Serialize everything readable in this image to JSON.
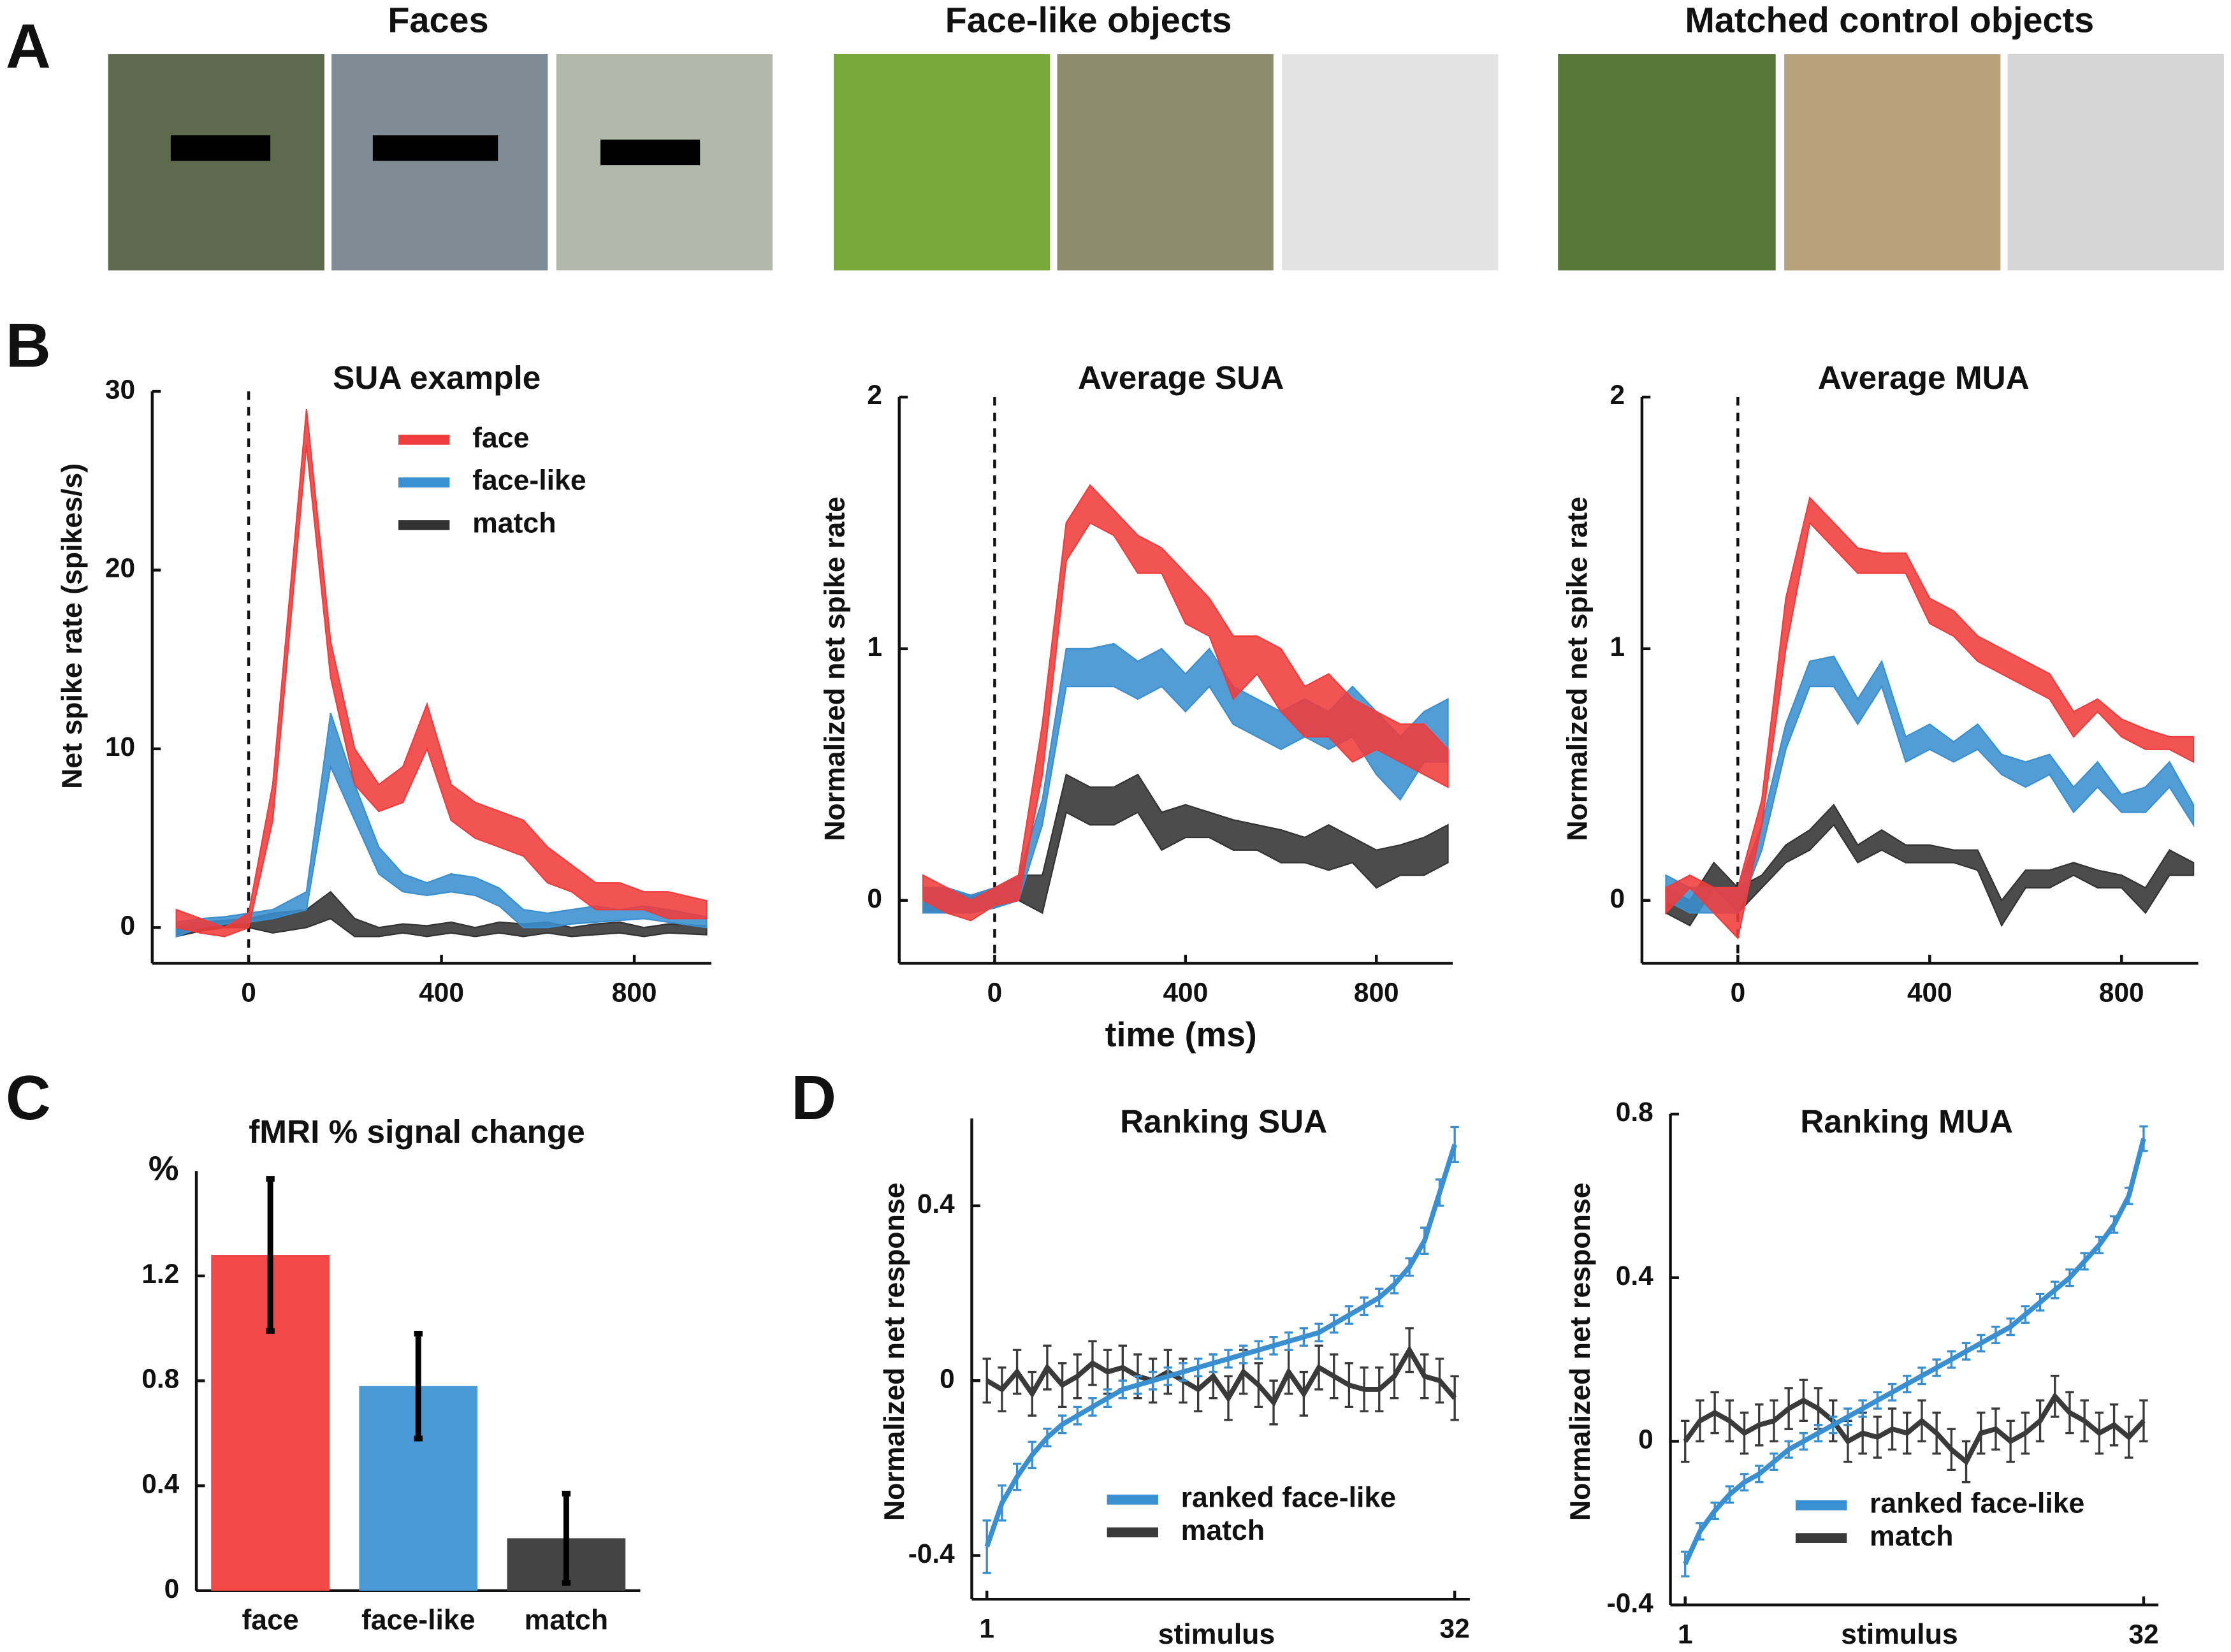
{
  "panel_labels": [
    "A",
    "B",
    "C",
    "D"
  ],
  "image_titles": [
    "Faces",
    "Face-like objects",
    "Matched control objects"
  ],
  "chart_data": [
    {
      "type": "band",
      "title": "SUA example",
      "y_label": "Net spike rate (spikes/s)",
      "x": [
        -150,
        -100,
        -50,
        0,
        50,
        120,
        170,
        220,
        270,
        320,
        370,
        420,
        470,
        520,
        570,
        620,
        670,
        720,
        770,
        820,
        870,
        950
      ],
      "xlim": [
        -200,
        960
      ],
      "xticks": [
        0,
        400,
        800
      ],
      "ylim": [
        -2,
        30
      ],
      "yticks": [
        0,
        10,
        20,
        30
      ],
      "vline": 0,
      "legend": "upper right",
      "series": [
        {
          "name": "face",
          "color": "#f03c3c",
          "lower": [
            0,
            -0.3,
            -0.5,
            0,
            6,
            27,
            14,
            8,
            6.5,
            7,
            10,
            6,
            5,
            4.5,
            4,
            2.5,
            2,
            1,
            1,
            1,
            0.5,
            0.5
          ],
          "upper": [
            1,
            0.5,
            0,
            0.8,
            8,
            29,
            16,
            10,
            8,
            9,
            12.5,
            8,
            7,
            6.5,
            6,
            4.5,
            3.5,
            2.5,
            2.5,
            2,
            2,
            1.5
          ]
        },
        {
          "name": "face-like",
          "color": "#3a8fd0",
          "lower": [
            -0.5,
            0,
            0.2,
            0.3,
            0.5,
            1,
            9,
            6,
            3,
            2,
            1.8,
            2,
            1.8,
            1.2,
            0,
            0,
            0.2,
            0.3,
            0.4,
            0.5,
            0.3,
            0
          ],
          "upper": [
            0.3,
            0.5,
            0.6,
            0.8,
            1,
            2,
            12,
            8,
            4.5,
            3,
            2.5,
            3,
            2.8,
            2.2,
            1,
            0.8,
            1,
            1.2,
            1,
            1.2,
            1,
            0.6
          ]
        },
        {
          "name": "match",
          "color": "#333333",
          "lower": [
            -0.5,
            -0.2,
            0,
            0,
            -0.3,
            0,
            0.5,
            -0.5,
            -0.5,
            -0.3,
            -0.5,
            -0.3,
            -0.5,
            -0.3,
            -0.5,
            -0.3,
            -0.5,
            -0.4,
            -0.3,
            -0.5,
            -0.3,
            -0.4
          ],
          "upper": [
            0,
            0.3,
            0.4,
            0.5,
            0.8,
            1,
            2,
            0.5,
            0,
            0.2,
            0.1,
            0.3,
            0,
            0.3,
            0.2,
            0.3,
            0,
            0.2,
            0.3,
            0,
            0.2,
            0.1
          ]
        }
      ]
    },
    {
      "type": "band",
      "title": "Average SUA",
      "y_label": "Normalized net spike rate",
      "x_label": "time (ms)",
      "x": [
        -150,
        -100,
        -50,
        0,
        50,
        100,
        150,
        200,
        250,
        300,
        350,
        400,
        450,
        500,
        550,
        600,
        650,
        700,
        750,
        800,
        850,
        900,
        950
      ],
      "xlim": [
        -200,
        960
      ],
      "xticks": [
        0,
        400,
        800
      ],
      "ylim": [
        -0.25,
        2
      ],
      "yticks": [
        0,
        1,
        2
      ],
      "vline": 0,
      "series": [
        {
          "color": "#f03c3c",
          "lower": [
            0,
            -0.05,
            -0.08,
            -0.02,
            0,
            0.5,
            1.35,
            1.5,
            1.45,
            1.3,
            1.3,
            1.1,
            1.05,
            0.8,
            0.9,
            0.75,
            0.65,
            0.65,
            0.55,
            0.6,
            0.55,
            0.5,
            0.45
          ],
          "upper": [
            0.1,
            0.05,
            0,
            0.05,
            0.1,
            0.7,
            1.5,
            1.65,
            1.55,
            1.45,
            1.4,
            1.3,
            1.2,
            1.05,
            1.05,
            1,
            0.85,
            0.9,
            0.8,
            0.75,
            0.7,
            0.7,
            0.6
          ]
        },
        {
          "color": "#3a8fd0",
          "lower": [
            -0.05,
            -0.05,
            -0.05,
            -0.03,
            0,
            0.3,
            0.85,
            0.85,
            0.85,
            0.8,
            0.85,
            0.75,
            0.85,
            0.7,
            0.65,
            0.6,
            0.65,
            0.6,
            0.65,
            0.5,
            0.4,
            0.55,
            0.55
          ],
          "upper": [
            0.05,
            0.05,
            0.02,
            0.05,
            0.1,
            0.4,
            1,
            1,
            1.02,
            0.95,
            1,
            0.9,
            1,
            0.85,
            0.8,
            0.75,
            0.8,
            0.75,
            0.85,
            0.75,
            0.65,
            0.75,
            0.8
          ]
        },
        {
          "color": "#333333",
          "lower": [
            -0.05,
            -0.05,
            -0.05,
            -0.03,
            0,
            -0.05,
            0.35,
            0.3,
            0.3,
            0.35,
            0.2,
            0.25,
            0.25,
            0.2,
            0.2,
            0.15,
            0.15,
            0.12,
            0.15,
            0.05,
            0.1,
            0.1,
            0.15
          ],
          "upper": [
            0.05,
            0.05,
            0.02,
            0.05,
            0.1,
            0.1,
            0.5,
            0.45,
            0.45,
            0.5,
            0.35,
            0.38,
            0.35,
            0.32,
            0.3,
            0.28,
            0.25,
            0.3,
            0.25,
            0.2,
            0.22,
            0.25,
            0.3
          ]
        }
      ]
    },
    {
      "type": "band",
      "title": "Average MUA",
      "y_label": "Normalized net spike rate",
      "x": [
        -150,
        -100,
        -50,
        0,
        50,
        100,
        150,
        200,
        250,
        300,
        350,
        400,
        450,
        500,
        550,
        600,
        650,
        700,
        750,
        800,
        850,
        900,
        950
      ],
      "xlim": [
        -200,
        960
      ],
      "xticks": [
        0,
        400,
        800
      ],
      "ylim": [
        -0.25,
        2
      ],
      "yticks": [
        0,
        1,
        2
      ],
      "vline": 0,
      "series": [
        {
          "color": "#f03c3c",
          "lower": [
            -0.05,
            0.05,
            -0.05,
            -0.15,
            0.3,
            1,
            1.5,
            1.4,
            1.3,
            1.3,
            1.3,
            1.1,
            1.05,
            0.95,
            0.9,
            0.85,
            0.8,
            0.65,
            0.75,
            0.65,
            0.6,
            0.6,
            0.55
          ],
          "upper": [
            0.05,
            0.1,
            0.05,
            0.05,
            0.4,
            1.2,
            1.6,
            1.5,
            1.4,
            1.38,
            1.38,
            1.2,
            1.15,
            1.05,
            1,
            0.95,
            0.9,
            0.75,
            0.8,
            0.72,
            0.68,
            0.65,
            0.65
          ]
        },
        {
          "color": "#3a8fd0",
          "lower": [
            0,
            -0.05,
            -0.05,
            -0.05,
            0.2,
            0.6,
            0.85,
            0.85,
            0.7,
            0.85,
            0.55,
            0.6,
            0.55,
            0.6,
            0.5,
            0.45,
            0.5,
            0.35,
            0.45,
            0.35,
            0.35,
            0.45,
            0.3
          ],
          "upper": [
            0.1,
            0.05,
            0.05,
            0.05,
            0.3,
            0.7,
            0.95,
            0.97,
            0.8,
            0.95,
            0.65,
            0.7,
            0.63,
            0.7,
            0.58,
            0.55,
            0.58,
            0.45,
            0.55,
            0.42,
            0.45,
            0.55,
            0.38
          ]
        },
        {
          "color": "#333333",
          "lower": [
            -0.05,
            -0.1,
            0.05,
            -0.05,
            0.05,
            0.15,
            0.2,
            0.3,
            0.15,
            0.2,
            0.15,
            0.15,
            0.15,
            0.12,
            -0.1,
            0.05,
            0.05,
            0.1,
            0.05,
            0.05,
            -0.05,
            0.1,
            0.1
          ],
          "upper": [
            0.05,
            0,
            0.15,
            0.05,
            0.1,
            0.22,
            0.28,
            0.38,
            0.22,
            0.28,
            0.22,
            0.22,
            0.2,
            0.2,
            0,
            0.12,
            0.12,
            0.15,
            0.12,
            0.1,
            0.05,
            0.2,
            0.15
          ]
        }
      ]
    },
    {
      "type": "bar",
      "title": "fMRI % signal change",
      "y_label": "%",
      "categories": [
        "face",
        "face-like",
        "match"
      ],
      "values": [
        1.28,
        0.78,
        0.2
      ],
      "errors": [
        0.29,
        0.2,
        0.17
      ],
      "colors": [
        "#f44848",
        "#4a9ad8",
        "#444444"
      ],
      "ylim": [
        0,
        1.6
      ],
      "yticks": [
        0,
        0.4,
        0.8,
        1.2
      ]
    },
    {
      "type": "line",
      "title": "Ranking SUA",
      "y_label": "Normalized net response",
      "x_label": "stimulus",
      "x": [
        1,
        2,
        3,
        4,
        5,
        6,
        7,
        8,
        9,
        10,
        11,
        12,
        13,
        14,
        15,
        16,
        17,
        18,
        19,
        20,
        21,
        22,
        23,
        24,
        25,
        26,
        27,
        28,
        29,
        30,
        31,
        32
      ],
      "xlim": [
        0,
        33
      ],
      "xticks": [
        1,
        32
      ],
      "ylim": [
        -0.5,
        0.6
      ],
      "yticks": [
        -0.4,
        0,
        0.4
      ],
      "legend": "lower right",
      "series": [
        {
          "name": "ranked face-like",
          "color": "#3a8fd0",
          "values": [
            -0.38,
            -0.28,
            -0.22,
            -0.17,
            -0.13,
            -0.1,
            -0.08,
            -0.06,
            -0.04,
            -0.02,
            -0.01,
            0,
            0.01,
            0.02,
            0.03,
            0.04,
            0.05,
            0.06,
            0.07,
            0.08,
            0.09,
            0.1,
            0.11,
            0.13,
            0.15,
            0.17,
            0.19,
            0.22,
            0.26,
            0.32,
            0.43,
            0.54
          ],
          "errors": [
            0.06,
            0.04,
            0.03,
            0.03,
            0.02,
            0.02,
            0.02,
            0.02,
            0.02,
            0.02,
            0.02,
            0.02,
            0.02,
            0.02,
            0.02,
            0.02,
            0.02,
            0.02,
            0.02,
            0.02,
            0.02,
            0.02,
            0.02,
            0.02,
            0.02,
            0.02,
            0.02,
            0.02,
            0.02,
            0.03,
            0.03,
            0.04
          ]
        },
        {
          "name": "match",
          "color": "#3a3a3a",
          "values": [
            0,
            -0.02,
            0.02,
            -0.03,
            0.03,
            -0.01,
            0.01,
            0.04,
            0.02,
            0.03,
            0.01,
            0,
            0.02,
            0,
            -0.02,
            0.01,
            -0.04,
            0.02,
            -0.01,
            -0.05,
            0.02,
            -0.03,
            0.03,
            0.01,
            -0.01,
            -0.02,
            -0.02,
            0.01,
            0.07,
            0.01,
            0,
            -0.04
          ],
          "errors": [
            0.05,
            0.05,
            0.05,
            0.05,
            0.05,
            0.05,
            0.05,
            0.05,
            0.05,
            0.05,
            0.05,
            0.05,
            0.05,
            0.05,
            0.05,
            0.05,
            0.05,
            0.05,
            0.05,
            0.05,
            0.05,
            0.05,
            0.05,
            0.05,
            0.05,
            0.05,
            0.05,
            0.05,
            0.05,
            0.05,
            0.05,
            0.05
          ]
        }
      ]
    },
    {
      "type": "line",
      "title": "Ranking MUA",
      "y_label": "Normalized net response",
      "x_label": "stimulus",
      "x": [
        1,
        2,
        3,
        4,
        5,
        6,
        7,
        8,
        9,
        10,
        11,
        12,
        13,
        14,
        15,
        16,
        17,
        18,
        19,
        20,
        21,
        22,
        23,
        24,
        25,
        26,
        27,
        28,
        29,
        30,
        31,
        32
      ],
      "xlim": [
        0,
        33
      ],
      "xticks": [
        1,
        32
      ],
      "ylim": [
        -0.4,
        0.8
      ],
      "yticks": [
        -0.4,
        0,
        0.4,
        0.8
      ],
      "legend": "lower right",
      "series": [
        {
          "name": "ranked face-like",
          "color": "#3a8fd0",
          "values": [
            -0.3,
            -0.22,
            -0.17,
            -0.13,
            -0.1,
            -0.08,
            -0.05,
            -0.02,
            0,
            0.02,
            0.04,
            0.06,
            0.08,
            0.1,
            0.12,
            0.14,
            0.16,
            0.18,
            0.2,
            0.22,
            0.24,
            0.26,
            0.28,
            0.31,
            0.34,
            0.37,
            0.4,
            0.44,
            0.48,
            0.53,
            0.6,
            0.74
          ],
          "errors": [
            0.03,
            0.02,
            0.02,
            0.02,
            0.02,
            0.02,
            0.02,
            0.02,
            0.02,
            0.02,
            0.02,
            0.02,
            0.02,
            0.02,
            0.02,
            0.02,
            0.02,
            0.02,
            0.02,
            0.02,
            0.02,
            0.02,
            0.02,
            0.02,
            0.02,
            0.02,
            0.02,
            0.02,
            0.02,
            0.02,
            0.02,
            0.03
          ]
        },
        {
          "name": "match",
          "color": "#3a3a3a",
          "values": [
            0,
            0.05,
            0.07,
            0.05,
            0.02,
            0.04,
            0.05,
            0.08,
            0.1,
            0.08,
            0.05,
            0,
            0.02,
            0.01,
            0.03,
            0.02,
            0.05,
            0.02,
            -0.02,
            -0.05,
            0.02,
            0.03,
            0,
            0.02,
            0.05,
            0.11,
            0.07,
            0.05,
            0.02,
            0.04,
            0.01,
            0.05
          ],
          "errors": [
            0.05,
            0.05,
            0.05,
            0.05,
            0.05,
            0.05,
            0.05,
            0.05,
            0.05,
            0.05,
            0.05,
            0.05,
            0.05,
            0.05,
            0.05,
            0.05,
            0.05,
            0.05,
            0.05,
            0.05,
            0.05,
            0.05,
            0.05,
            0.05,
            0.05,
            0.05,
            0.05,
            0.05,
            0.05,
            0.05,
            0.05,
            0.05
          ]
        }
      ]
    }
  ]
}
